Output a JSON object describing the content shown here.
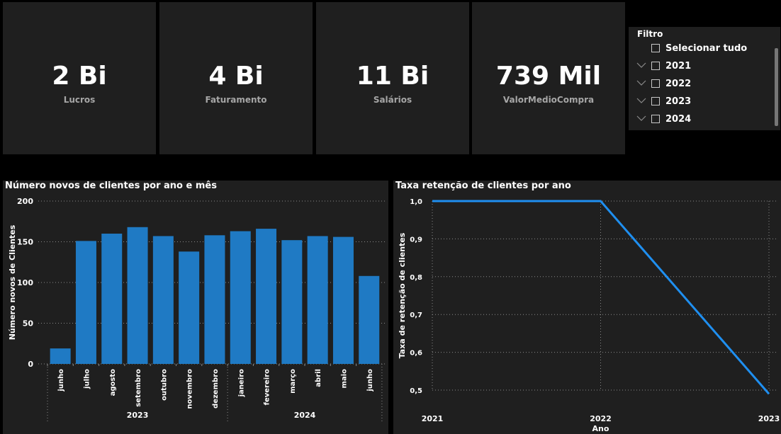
{
  "kpis": [
    {
      "value": "2 Bi",
      "label": "Lucros"
    },
    {
      "value": "4 Bi",
      "label": "Faturamento"
    },
    {
      "value": "11 Bi",
      "label": "Salários"
    },
    {
      "value": "739 Mil",
      "label": "ValorMedioCompra"
    }
  ],
  "filter": {
    "title": "Filtro",
    "select_all": "Selecionar tudo",
    "items": [
      "2021",
      "2022",
      "2023",
      "2024"
    ]
  },
  "colors": {
    "bar": "#1f7ac4",
    "line": "#1f8ff0",
    "card": "#1f1f1f",
    "background": "#000000"
  },
  "chart_data": [
    {
      "type": "bar",
      "title": "Número novos de clientes por ano e mês",
      "ylabel": "Número novos de Clientes",
      "xlabel": "",
      "ylim": [
        0,
        200
      ],
      "yticks": [
        0,
        50,
        100,
        150,
        200
      ],
      "grid": true,
      "categories": [
        "junho",
        "julho",
        "agosto",
        "setembro",
        "outubro",
        "novembro",
        "dezembro",
        "janeiro",
        "fevereiro",
        "março",
        "abril",
        "maio",
        "junho"
      ],
      "groups": [
        {
          "label": "2023",
          "start": 0,
          "end": 6
        },
        {
          "label": "2024",
          "start": 7,
          "end": 12
        }
      ],
      "values": [
        19,
        151,
        160,
        168,
        157,
        138,
        158,
        163,
        166,
        152,
        157,
        156,
        108
      ]
    },
    {
      "type": "line",
      "title": "Taxa retenção de clientes por ano",
      "ylabel": "Taxa de retenção de clientes",
      "xlabel": "Ano",
      "x": [
        "2021",
        "2022",
        "2023"
      ],
      "values": [
        1.0,
        1.0,
        0.49
      ],
      "ylim": [
        0.5,
        1.0
      ],
      "yticks": [
        "0,5",
        "0,6",
        "0,7",
        "0,8",
        "0,9",
        "1,0"
      ],
      "grid": true
    }
  ]
}
